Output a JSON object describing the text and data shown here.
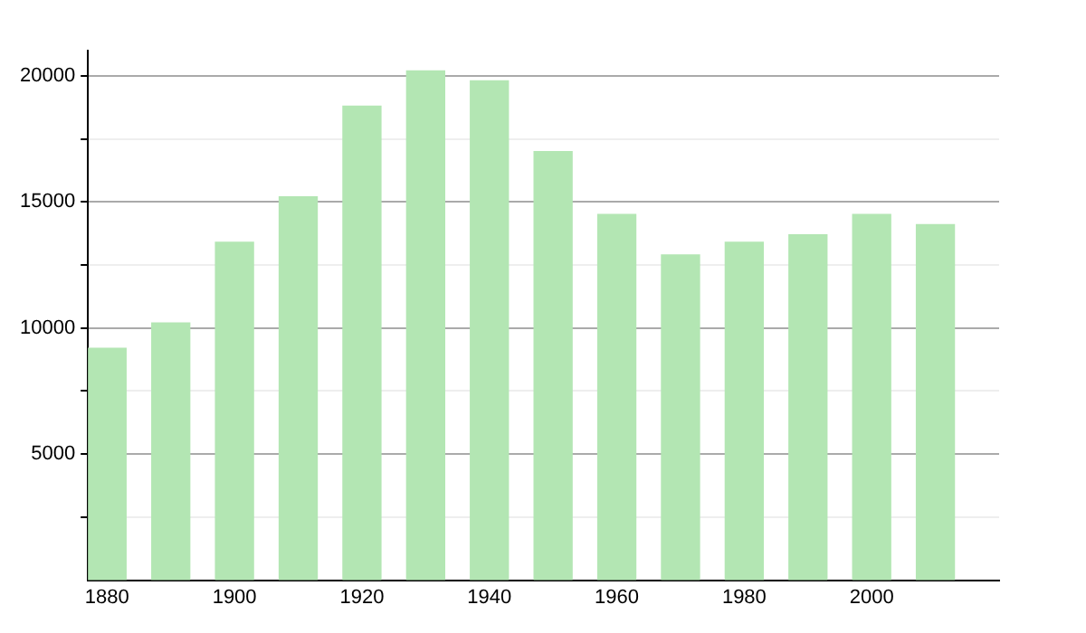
{
  "chart_data": {
    "type": "bar",
    "x": [
      1880,
      1890,
      1900,
      1910,
      1920,
      1930,
      1940,
      1950,
      1960,
      1970,
      1980,
      1990,
      2000,
      2010
    ],
    "values": [
      9200,
      10200,
      13400,
      15200,
      18800,
      20200,
      19800,
      17000,
      14500,
      12900,
      13400,
      13700,
      14500,
      14100
    ],
    "color": "#b3e6b3",
    "xlim": [
      1877,
      2020
    ],
    "xticks": [
      1880,
      1900,
      1920,
      1940,
      1960,
      1980,
      2000
    ],
    "ylim": [
      0,
      21000
    ],
    "yticks": [
      {
        "value": 2500,
        "label": null
      },
      5000,
      {
        "value": 7500,
        "label": null
      },
      10000,
      {
        "value": 12500,
        "label": null
      },
      15000,
      {
        "value": 17500,
        "label": null
      },
      20000
    ],
    "grid": "y"
  }
}
